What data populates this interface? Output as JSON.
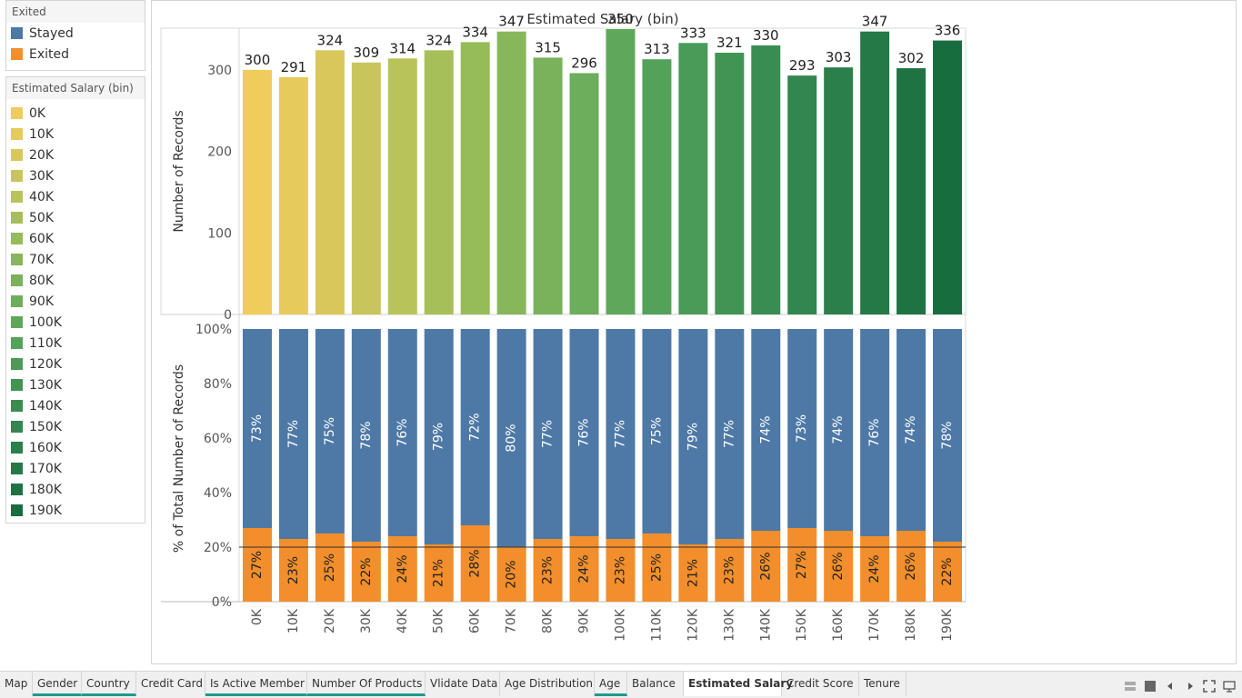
{
  "legend_exited": {
    "title": "Exited",
    "items": [
      {
        "label": "Stayed",
        "color": "#4e79a7"
      },
      {
        "label": "Exited",
        "color": "#f28e2b"
      }
    ]
  },
  "legend_salary": {
    "title": "Estimated Salary (bin)"
  },
  "chart_data": {
    "type": "bar",
    "title": "Estimated Salary (bin)",
    "categories": [
      "0K",
      "10K",
      "20K",
      "30K",
      "40K",
      "50K",
      "60K",
      "70K",
      "80K",
      "90K",
      "100K",
      "110K",
      "120K",
      "130K",
      "140K",
      "150K",
      "160K",
      "170K",
      "180K",
      "190K"
    ],
    "colors": [
      "#f0cc5c",
      "#e6cb5c",
      "#d9c75c",
      "#c8c55c",
      "#b8c35a",
      "#a6bf59",
      "#96bb59",
      "#87b75a",
      "#79b25b",
      "#6cae5c",
      "#5fa85b",
      "#54a25a",
      "#4b9b58",
      "#429455",
      "#3a8d52",
      "#32864f",
      "#2b7f4b",
      "#257947",
      "#1f7343",
      "#186d3f"
    ],
    "count": {
      "ylabel": "Number of Records",
      "ylim": [
        0,
        350
      ],
      "ticks": [
        0,
        100,
        200,
        300
      ],
      "tick_labels": [
        "0",
        "100",
        "200",
        "300"
      ],
      "values": [
        300,
        291,
        324,
        309,
        314,
        324,
        334,
        347,
        315,
        296,
        350,
        313,
        333,
        321,
        330,
        293,
        303,
        347,
        302,
        336
      ]
    },
    "percent": {
      "ylabel": "% of Total Number of Records",
      "ylim": [
        0,
        100
      ],
      "ticks": [
        0,
        20,
        40,
        60,
        80,
        100
      ],
      "tick_labels": [
        "0%",
        "20%",
        "40%",
        "60%",
        "80%",
        "100%"
      ],
      "reference_line": 20,
      "series": [
        {
          "name": "Exited",
          "color": "#f28e2b",
          "values": [
            27,
            23,
            25,
            22,
            24,
            21,
            28,
            20,
            23,
            24,
            23,
            25,
            21,
            23,
            26,
            27,
            26,
            24,
            26,
            22
          ],
          "labels": [
            "27%",
            "23%",
            "25%",
            "22%",
            "24%",
            "21%",
            "28%",
            "20%",
            "23%",
            "24%",
            "23%",
            "25%",
            "21%",
            "23%",
            "26%",
            "27%",
            "26%",
            "24%",
            "26%",
            "22%"
          ]
        },
        {
          "name": "Stayed",
          "color": "#4e79a7",
          "values": [
            73,
            77,
            75,
            78,
            76,
            79,
            72,
            80,
            77,
            76,
            77,
            75,
            79,
            77,
            74,
            73,
            74,
            76,
            74,
            78
          ],
          "labels": [
            "73%",
            "77%",
            "75%",
            "78%",
            "76%",
            "79%",
            "72%",
            "80%",
            "77%",
            "76%",
            "77%",
            "75%",
            "79%",
            "77%",
            "74%",
            "73%",
            "74%",
            "76%",
            "74%",
            "78%"
          ]
        }
      ]
    }
  },
  "tabs": [
    {
      "label": "Map",
      "underline": false,
      "active": false
    },
    {
      "label": "Gender",
      "underline": true,
      "active": false
    },
    {
      "label": "Country",
      "underline": true,
      "active": false
    },
    {
      "label": "Credit Card",
      "underline": false,
      "active": false
    },
    {
      "label": "Is Active Member",
      "underline": true,
      "active": false
    },
    {
      "label": "Number Of Products",
      "underline": true,
      "active": false
    },
    {
      "label": "Vlidate Data",
      "underline": false,
      "active": false
    },
    {
      "label": "Age Distribution",
      "underline": false,
      "active": false
    },
    {
      "label": "Age",
      "underline": true,
      "active": false
    },
    {
      "label": "Balance",
      "underline": false,
      "active": false
    },
    {
      "label": "Estimated Salary",
      "underline": false,
      "active": true
    },
    {
      "label": "Credit Score",
      "underline": false,
      "active": false
    },
    {
      "label": "Tenure",
      "underline": false,
      "active": false
    }
  ],
  "nav_controls": [
    "sheet-sorter-icon",
    "filmstrip-icon",
    "previous-sheet-icon",
    "next-sheet-icon",
    "fit-screen-icon",
    "presentation-mode-icon"
  ]
}
